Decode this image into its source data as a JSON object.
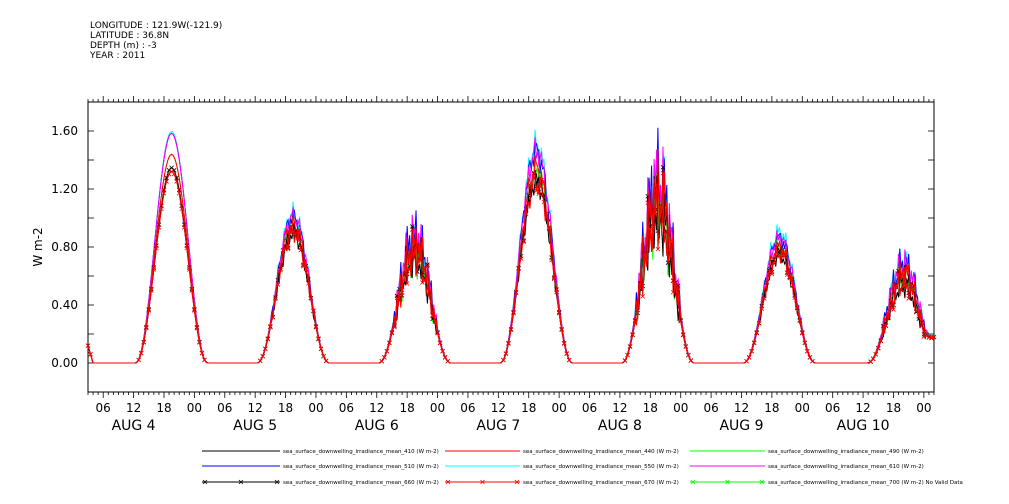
{
  "header": {
    "longitude": "LONGITUDE : 121.9W(-121.9)",
    "latitude": "LATITUDE : 36.8N",
    "depth": "DEPTH (m) : -3",
    "year": "YEAR : 2011"
  },
  "chart_data": {
    "type": "line",
    "title": "",
    "xlabel": "",
    "ylabel": "W m-2",
    "ylim": [
      -0.2,
      1.8
    ],
    "y_ticks": [
      0.0,
      0.4,
      0.8,
      1.2,
      1.6
    ],
    "y_tick_labels": [
      "0.00",
      "0.40",
      "0.80",
      "1.20",
      "1.60"
    ],
    "x_range_hours": [
      3,
      170
    ],
    "hour_tick_labels": [
      "06",
      "12",
      "18",
      "00",
      "06",
      "12",
      "18",
      "00",
      "06",
      "12",
      "18",
      "00",
      "06",
      "12",
      "18",
      "00",
      "06",
      "12",
      "18",
      "00",
      "06",
      "12",
      "18",
      "00",
      "06",
      "12",
      "18",
      "00"
    ],
    "day_labels": [
      "AUG 4",
      "AUG 5",
      "AUG 6",
      "AUG 7",
      "AUG 8",
      "AUG 9",
      "AUG 10"
    ],
    "day_peaks": [
      {
        "day": "AUG 4",
        "peak": 1.32,
        "noon_hour": 19.5,
        "spike": 0.0,
        "scale": [
          1.0,
          1.2,
          1.09,
          1.21,
          1.09,
          1.2,
          1.02
        ]
      },
      {
        "day": "AUG 5",
        "peak": 0.9,
        "noon_hour": 43.5,
        "spike": 0.08,
        "scale": [
          1.0,
          1.12,
          1.06,
          1.14,
          1.05,
          1.12,
          1.02
        ]
      },
      {
        "day": "AUG 6",
        "peak": 0.75,
        "noon_hour": 67.5,
        "spike": 0.2,
        "scale": [
          1.0,
          1.14,
          1.05,
          1.16,
          1.04,
          1.14,
          1.02
        ]
      },
      {
        "day": "AUG 7",
        "peak": 1.25,
        "noon_hour": 91.5,
        "spike": 0.1,
        "scale": [
          1.0,
          1.17,
          1.08,
          1.2,
          1.07,
          1.17,
          1.02
        ]
      },
      {
        "day": "AUG 8",
        "peak": 1.05,
        "noon_hour": 115.5,
        "spike": 0.35,
        "scale": [
          1.0,
          1.16,
          1.08,
          1.2,
          1.06,
          1.16,
          1.02
        ]
      },
      {
        "day": "AUG 9",
        "peak": 0.75,
        "noon_hour": 139.5,
        "spike": 0.07,
        "scale": [
          1.0,
          1.15,
          1.07,
          1.2,
          1.06,
          1.15,
          1.02
        ]
      },
      {
        "day": "AUG 10",
        "peak": 0.55,
        "noon_hour": 164.0,
        "spike": 0.12,
        "scale": [
          1.0,
          1.22,
          1.12,
          1.28,
          1.09,
          1.22,
          1.02
        ]
      }
    ],
    "series": [
      {
        "name": "sea_surface_downwelling_irradiance_mean_410 (W m-2)",
        "color": "#000000",
        "marker": "none"
      },
      {
        "name": "sea_surface_downwelling_irradiance_mean_510 (W m-2)",
        "color": "#0000ff",
        "marker": "none"
      },
      {
        "name": "sea_surface_downwelling_irradiance_mean_440 (W m-2)",
        "color": "#ff0000",
        "marker": "none"
      },
      {
        "name": "sea_surface_downwelling_irradiance_mean_550 (W m-2)",
        "color": "#00ffff",
        "marker": "none"
      },
      {
        "name": "sea_surface_downwelling_irradiance_mean_490 (W m-2)",
        "color": "#00ff00",
        "marker": "none"
      },
      {
        "name": "sea_surface_downwelling_irradiance_mean_610 (W m-2)",
        "color": "#ff00ff",
        "marker": "none"
      },
      {
        "name": "sea_surface_downwelling_irradiance_mean_660 (W m-2)",
        "color": "#000000",
        "marker": "x"
      },
      {
        "name": "sea_surface_downwelling_irradiance_mean_670 (W m-2)",
        "color": "#ff0000",
        "marker": "x"
      },
      {
        "name": "sea_surface_downwelling_irradiance_mean_700 (W m-2) No Valid Data",
        "color": "#00ff00",
        "marker": "x"
      }
    ],
    "grid": false,
    "legend_position": "bottom"
  }
}
